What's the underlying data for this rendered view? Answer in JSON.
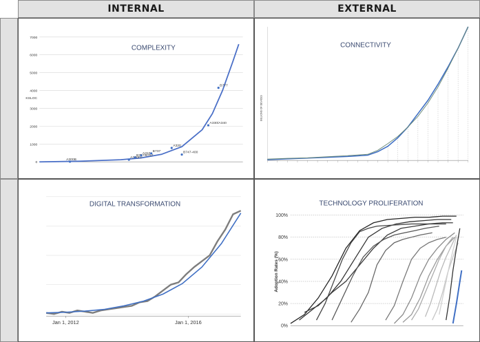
{
  "headers": {
    "left": "INTERNAL",
    "right": "EXTERNAL"
  },
  "chart_data": [
    {
      "id": "complexity",
      "type": "scatter",
      "title": "COMPLEXITY",
      "ylabel": "KSLOC",
      "xlabel": "",
      "ylim": [
        0,
        7000
      ],
      "y_ticks": [
        0,
        1000,
        2000,
        3000,
        4000,
        5000,
        6000,
        7000
      ],
      "xlim": [
        0,
        100
      ],
      "grid": "horizontal",
      "points": [
        {
          "label": "A300B",
          "x": 15,
          "y": 10
        },
        {
          "label": "A300FF",
          "x": 44,
          "y": 120
        },
        {
          "label": "B757/B767",
          "x": 47,
          "y": 240
        },
        {
          "label": "A310",
          "x": 50,
          "y": 360
        },
        {
          "label": "B737",
          "x": 55,
          "y": 470
        },
        {
          "label": "A320",
          "x": 65,
          "y": 780
        },
        {
          "label": "B747-400",
          "x": 70,
          "y": 410
        },
        {
          "label": "A330/A340",
          "x": 83,
          "y": 2050
        },
        {
          "label": "B777",
          "x": 88,
          "y": 4150
        }
      ],
      "trend": {
        "x": [
          0,
          20,
          40,
          50,
          60,
          70,
          80,
          85,
          90,
          95,
          98
        ],
        "y": [
          0,
          35,
          120,
          220,
          420,
          850,
          1800,
          2700,
          4000,
          5600,
          6600
        ]
      }
    },
    {
      "id": "connectivity",
      "type": "line",
      "title": "CONNECTIVITY",
      "ylabel": "BILLIONS OF DEVICES",
      "xlabel": "",
      "xlim": [
        0,
        100
      ],
      "ylim": [
        0,
        50
      ],
      "series": [
        {
          "x": [
            0,
            10,
            20,
            30,
            40,
            50,
            55,
            60,
            65,
            70,
            75,
            80,
            85,
            90,
            95,
            100
          ],
          "y": [
            0.3,
            0.6,
            0.9,
            1.2,
            1.5,
            2,
            3.3,
            5.3,
            8.5,
            12.5,
            17.5,
            22.5,
            28.5,
            35,
            42,
            50
          ]
        },
        {
          "x": [
            0,
            10,
            20,
            30,
            40,
            50,
            55,
            60,
            65,
            70,
            75,
            80,
            85,
            90,
            95,
            100
          ],
          "y": [
            0.5,
            0.8,
            1.0,
            1.4,
            1.8,
            2.3,
            3.8,
            6.3,
            9,
            12.5,
            16.5,
            21.5,
            27.5,
            34.5,
            42,
            50
          ]
        }
      ]
    },
    {
      "id": "digital",
      "type": "line",
      "title": "DIGITAL TRANSFORMATION",
      "xlabel": "",
      "ylabel": "",
      "x_ticks": [
        {
          "label": "Jan 1, 2012",
          "x": 10
        },
        {
          "label": "Jan 1, 2016",
          "x": 73
        }
      ],
      "xlim": [
        0,
        100
      ],
      "ylim": [
        0,
        100
      ],
      "series": [
        {
          "x": [
            0,
            4,
            8,
            12,
            16,
            20,
            24,
            28,
            32,
            36,
            40,
            44,
            48,
            52,
            56,
            60,
            64,
            68,
            72,
            76,
            80,
            84,
            88,
            92,
            96,
            100
          ],
          "y": [
            1,
            0,
            2,
            1,
            3,
            2,
            1,
            3,
            4,
            5,
            6,
            7,
            10,
            11,
            15,
            20,
            25,
            27,
            34,
            40,
            45,
            50,
            62,
            72,
            85,
            88
          ]
        },
        {
          "x": [
            0,
            10,
            20,
            30,
            40,
            50,
            60,
            70,
            80,
            90,
            100
          ],
          "y": [
            1,
            1.5,
            2.5,
            4,
            7,
            11,
            17,
            26,
            40,
            60,
            86
          ]
        }
      ]
    },
    {
      "id": "proliferation",
      "type": "line",
      "title": "TECHNOLOGY PROLIFERATION",
      "ylabel": "Adoption Rates (%)",
      "xlabel": "",
      "ylim": [
        0,
        100
      ],
      "y_ticks": [
        "0%",
        "20%",
        "40%",
        "60%",
        "80%",
        "100%"
      ],
      "xlim": [
        0,
        100
      ],
      "series": [
        {
          "color": "#222222",
          "x": [
            0,
            8,
            16,
            24,
            32,
            40,
            48,
            56,
            64,
            72,
            80,
            88,
            96
          ],
          "y": [
            2,
            10,
            25,
            45,
            70,
            86,
            93,
            96,
            97,
            98,
            98,
            99,
            99
          ]
        },
        {
          "color": "#333333",
          "x": [
            5,
            13,
            21,
            29,
            37,
            45,
            53,
            61,
            69,
            77,
            85,
            93
          ],
          "y": [
            5,
            15,
            25,
            40,
            60,
            80,
            88,
            92,
            94,
            95,
            96,
            96
          ]
        },
        {
          "color": "#3a3a3a",
          "x": [
            8,
            16,
            24,
            32,
            40,
            48,
            56,
            64,
            72,
            80,
            88,
            94
          ],
          "y": [
            12,
            18,
            30,
            40,
            55,
            70,
            82,
            88,
            90,
            92,
            93,
            93
          ]
        },
        {
          "color": "#444444",
          "x": [
            15,
            20,
            25,
            30,
            35,
            40,
            45,
            50,
            60,
            70,
            80,
            90
          ],
          "y": [
            5,
            20,
            40,
            60,
            75,
            85,
            88,
            90,
            91,
            92,
            92,
            92
          ]
        },
        {
          "color": "#555555",
          "x": [
            24,
            30,
            36,
            42,
            48,
            54,
            60,
            66,
            72,
            78,
            86
          ],
          "y": [
            5,
            25,
            45,
            62,
            72,
            78,
            82,
            84,
            86,
            88,
            90
          ]
        },
        {
          "color": "#666666",
          "x": [
            35,
            40,
            45,
            50,
            55,
            60,
            65,
            70,
            75,
            82
          ],
          "y": [
            3,
            15,
            30,
            55,
            68,
            75,
            78,
            80,
            82,
            84
          ]
        },
        {
          "color": "#777777",
          "x": [
            55,
            60,
            65,
            70,
            75,
            80,
            85,
            90
          ],
          "y": [
            5,
            18,
            40,
            60,
            70,
            75,
            78,
            80
          ]
        },
        {
          "color": "#888888",
          "x": [
            60,
            65,
            70,
            75,
            80,
            85,
            90,
            95
          ],
          "y": [
            2,
            10,
            25,
            45,
            60,
            70,
            78,
            84
          ]
        },
        {
          "color": "#999999",
          "x": [
            65,
            70,
            75,
            80,
            85,
            90,
            95
          ],
          "y": [
            3,
            10,
            25,
            45,
            60,
            72,
            80
          ]
        },
        {
          "color": "#aaaaaa",
          "x": [
            70,
            74,
            78,
            82,
            86,
            90,
            94
          ],
          "y": [
            5,
            15,
            30,
            45,
            60,
            72,
            80
          ]
        },
        {
          "color": "#b8b8b8",
          "x": [
            78,
            81,
            84,
            87,
            90,
            93,
            96
          ],
          "y": [
            8,
            20,
            35,
            50,
            62,
            72,
            82
          ]
        },
        {
          "color": "#c5c5c5",
          "x": [
            82,
            85,
            88,
            91,
            94,
            97
          ],
          "y": [
            5,
            15,
            30,
            48,
            62,
            75
          ]
        },
        {
          "color": "#d0d0d0",
          "x": [
            86,
            88,
            90,
            92,
            94,
            96
          ],
          "y": [
            10,
            25,
            40,
            55,
            68,
            80
          ]
        },
        {
          "color": "#333333",
          "x": [
            90,
            92,
            94,
            96,
            98
          ],
          "y": [
            5,
            25,
            50,
            70,
            88
          ]
        },
        {
          "color": "#3f6fc4",
          "x": [
            94,
            96,
            98,
            99
          ],
          "y": [
            2,
            20,
            40,
            50
          ]
        }
      ]
    }
  ]
}
